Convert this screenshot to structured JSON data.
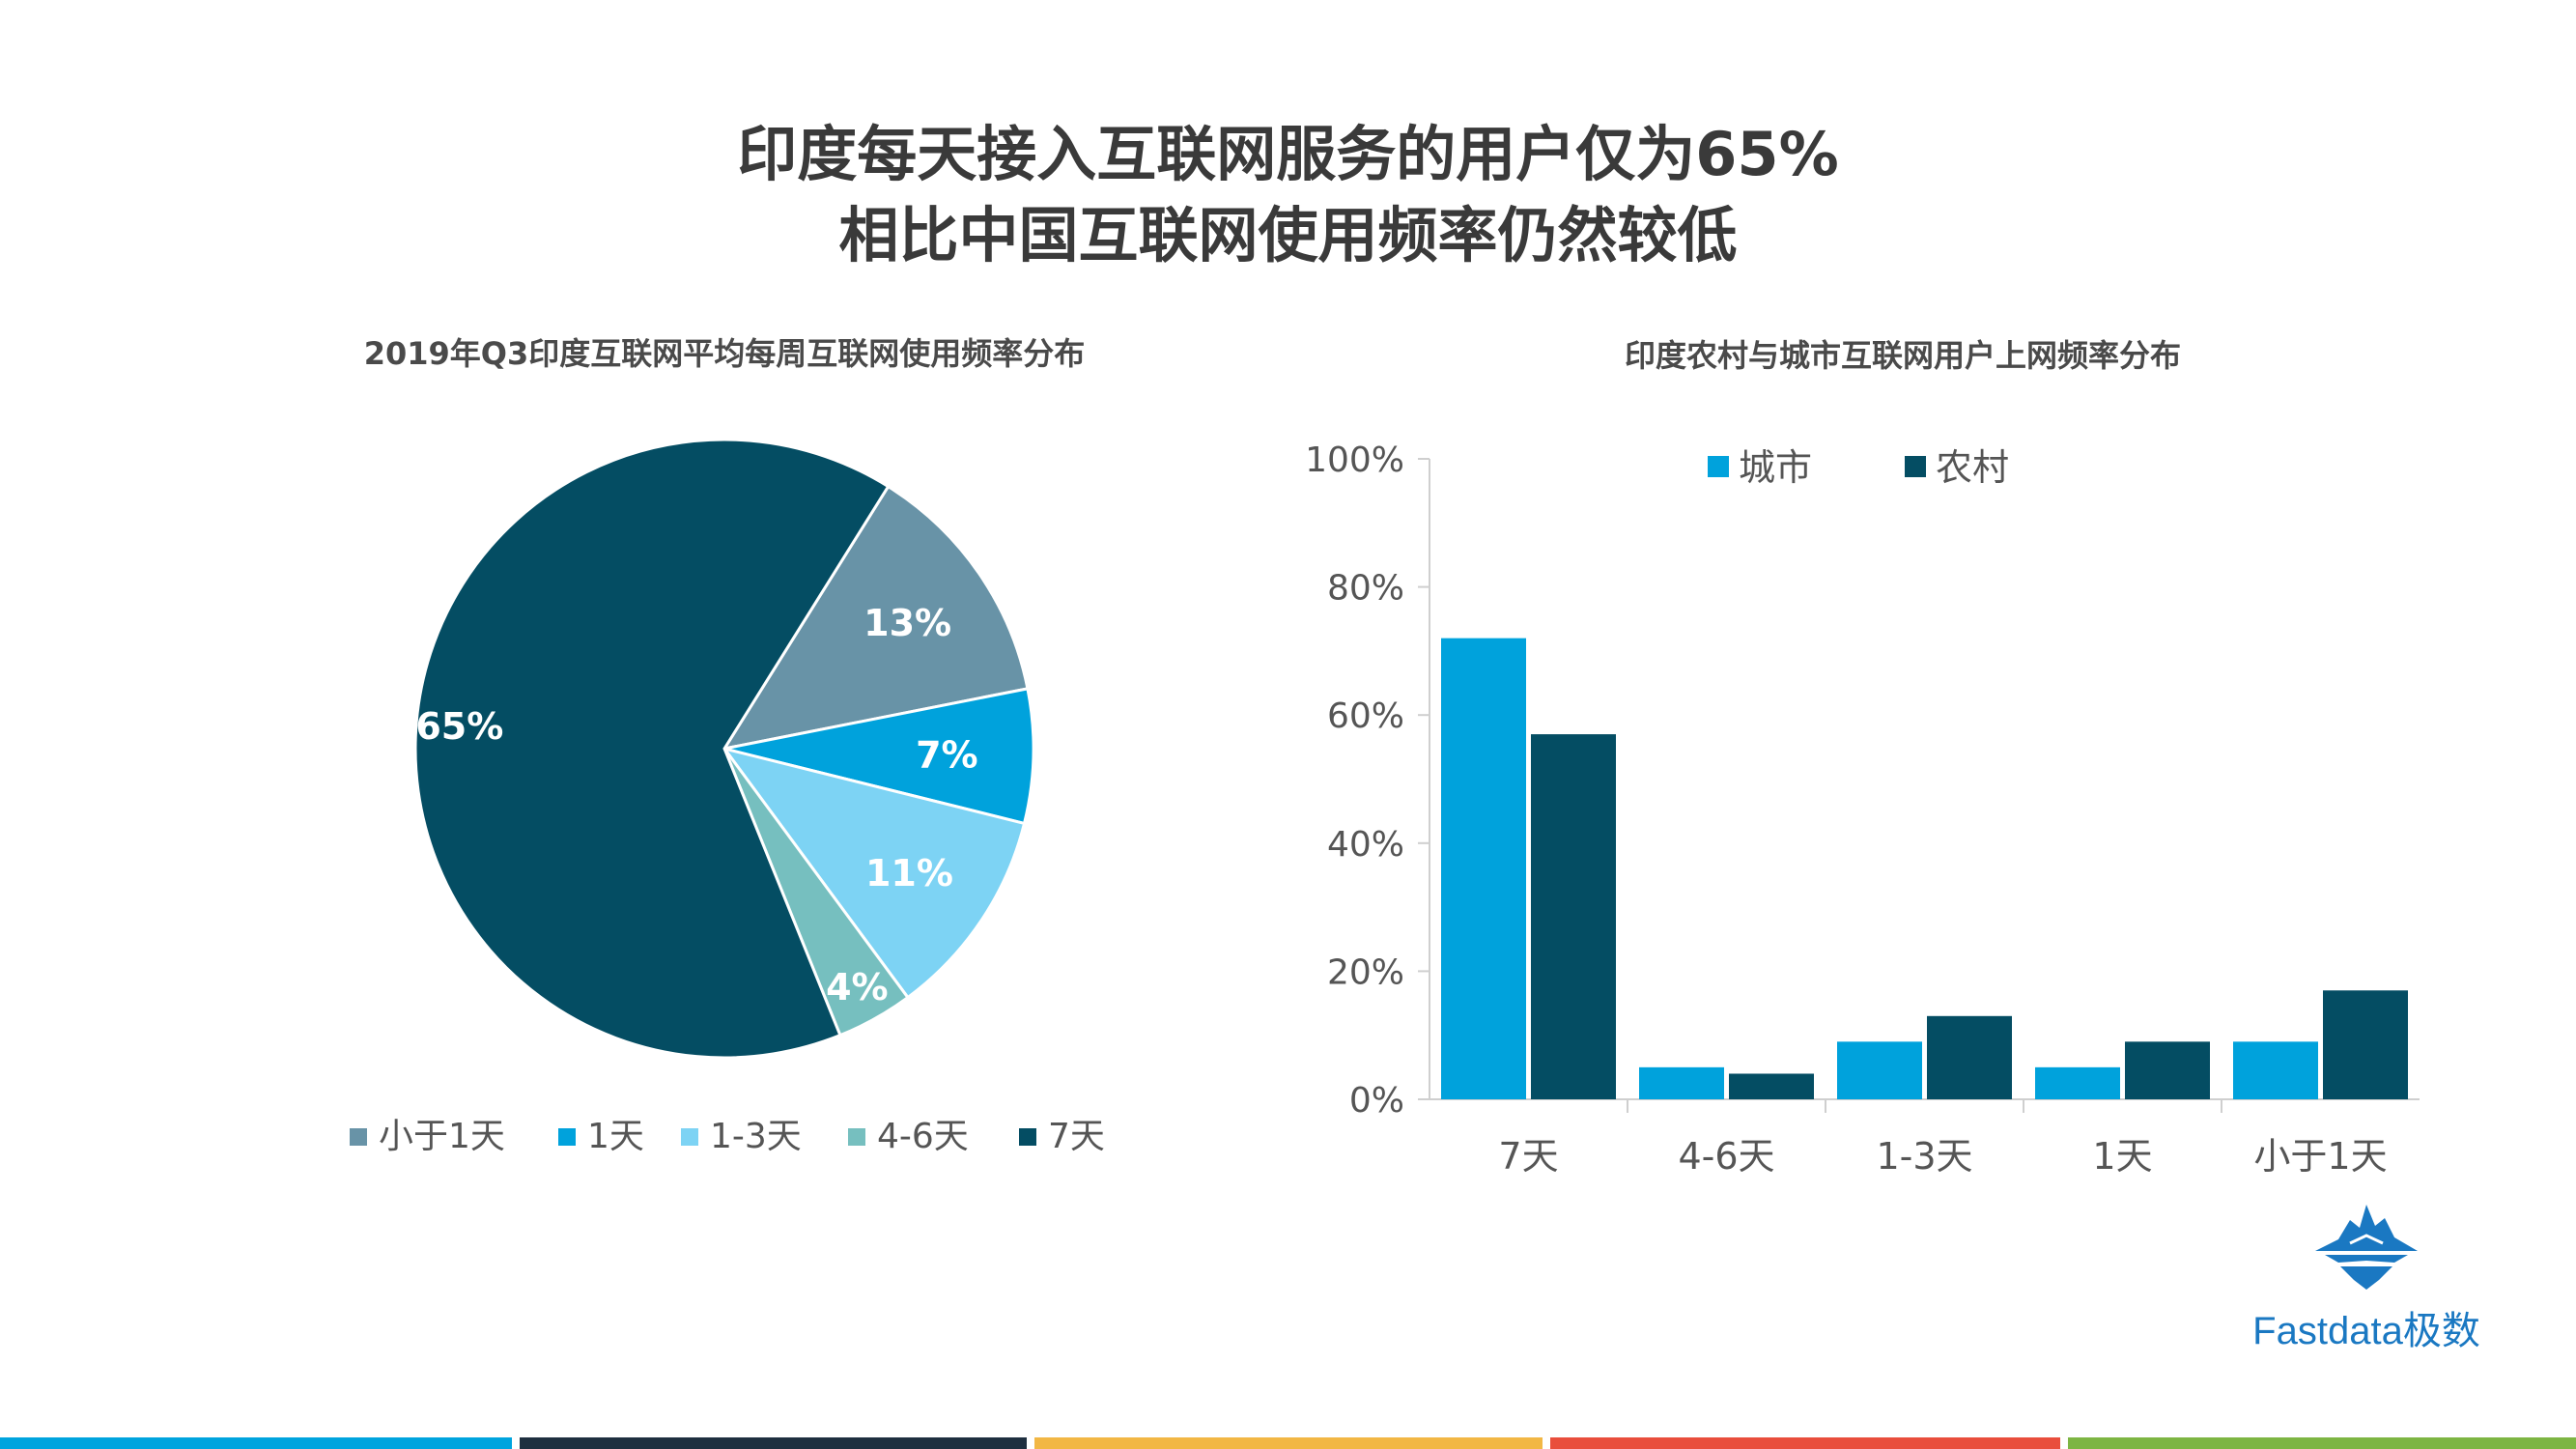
{
  "title_line_1": "印度每天接入互联网服务的用户仅为65%",
  "title_line_2": "相比中国互联网使用频率仍然较低",
  "brand": "Fastdata极数",
  "stripe_colors": [
    "#00a4de",
    "#1e2f3f",
    "#f2b744",
    "#e94e3c",
    "#7db543"
  ],
  "chart_data": [
    {
      "type": "pie",
      "title": "2019年Q3印度互联网平均每周互联网使用频率分布",
      "slices": [
        {
          "label": "小于1天",
          "value": 13,
          "display": "13%",
          "color": "#6893a7"
        },
        {
          "label": "1天",
          "value": 7,
          "display": "7%",
          "color": "#00a2dc"
        },
        {
          "label": "1-3天",
          "value": 11,
          "display": "11%",
          "color": "#7dd3f4"
        },
        {
          "label": "4-6天",
          "value": 4,
          "display": "4%",
          "color": "#76bfbf"
        },
        {
          "label": "7天",
          "value": 65,
          "display": "65%",
          "color": "#044d63"
        }
      ],
      "legend_order": [
        "小于1天",
        "1天",
        "1-3天",
        "4-6天",
        "7天"
      ],
      "legend_position": "bottom"
    },
    {
      "type": "bar",
      "title": "印度农村与城市互联网用户上网频率分布",
      "categories": [
        "7天",
        "4-6天",
        "1-3天",
        "1天",
        "小于1天"
      ],
      "series": [
        {
          "name": "城市",
          "color": "#00a2dc",
          "values": [
            72,
            5,
            9,
            5,
            9
          ]
        },
        {
          "name": "农村",
          "color": "#044d63",
          "values": [
            57,
            4,
            13,
            9,
            17
          ]
        }
      ],
      "ylim": [
        0,
        100
      ],
      "yticks": [
        "0%",
        "20%",
        "40%",
        "60%",
        "80%",
        "100%"
      ],
      "ytick_values": [
        0,
        20,
        40,
        60,
        80,
        100
      ],
      "grid": false,
      "legend_position": "top"
    }
  ]
}
